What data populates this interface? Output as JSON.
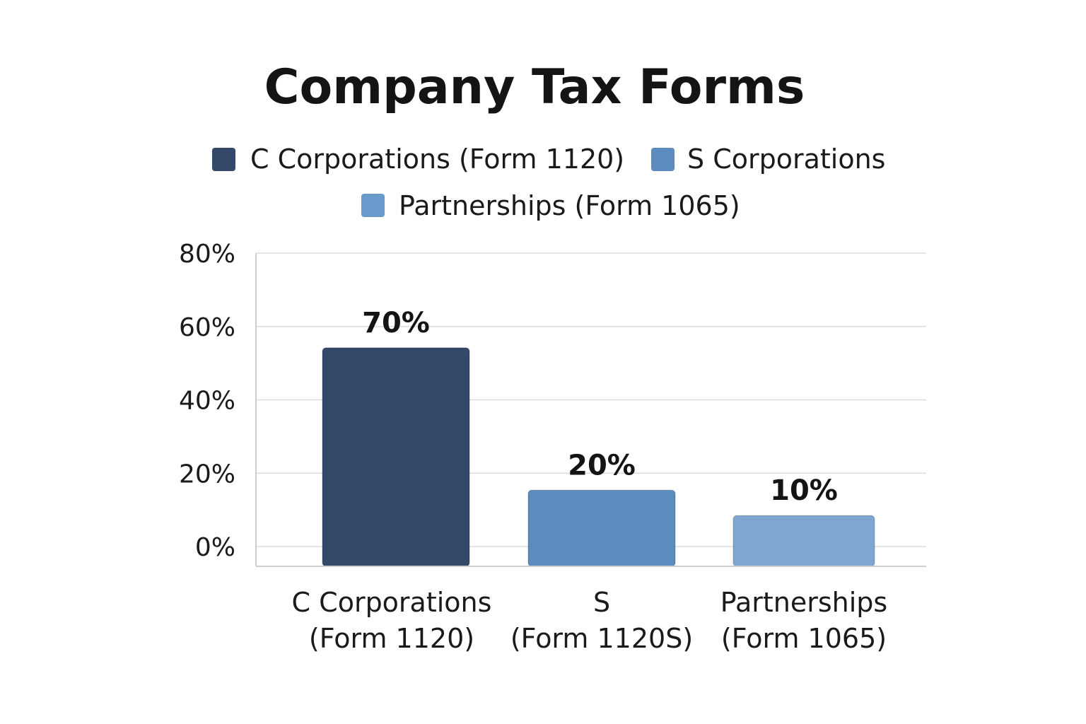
{
  "chart_data": {
    "type": "bar",
    "title": "Company Tax Forms",
    "legend": {
      "placement": "top",
      "entries": [
        {
          "label": "C Corporations (Form 1120)",
          "color": "#34496a"
        },
        {
          "label": "S Corporations",
          "color": "#5b8bbf"
        },
        {
          "label": "Partnerships (Form 1065)",
          "color": "#6a9acb"
        }
      ]
    },
    "categories": [
      [
        "C Corporations",
        "(Form 1120)"
      ],
      [
        "S",
        "(Form 1120S)"
      ],
      [
        "Partnerships",
        "(Form 1065)"
      ]
    ],
    "values": [
      70,
      20,
      10
    ],
    "value_labels": [
      "70%",
      "20%",
      "10%"
    ],
    "bar_colors": [
      "#34496a",
      "#5b8bbf",
      "#7fa6d0"
    ],
    "ylim": [
      0,
      80
    ],
    "yticks": [
      0,
      20,
      40,
      60,
      80
    ],
    "ytick_labels": [
      "0%",
      "20%",
      "40%",
      "60%",
      "80%"
    ],
    "xlabel": "",
    "ylabel": "",
    "grid": true
  }
}
